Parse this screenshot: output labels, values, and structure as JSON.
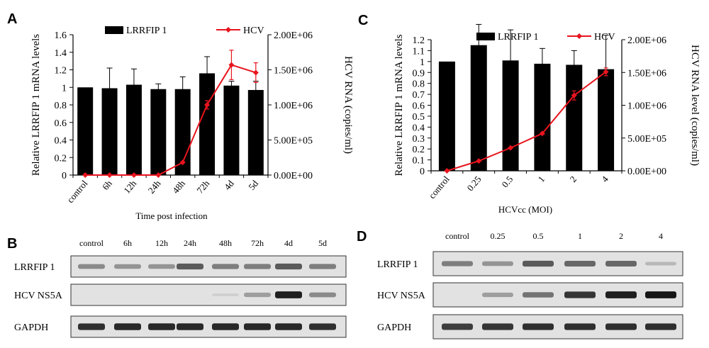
{
  "chart_data": [
    {
      "panel": "A",
      "type": "bar",
      "secondary_type": "line",
      "categories": [
        "control",
        "6h",
        "12h",
        "24h",
        "48h",
        "72h",
        "4d",
        "5d"
      ],
      "xlabel": "Time post infection",
      "ylabel": "Relative LRRFIP 1 mRNA levels",
      "y2label": "HCV RNA (copies/ml)",
      "ylim": [
        0,
        1.6
      ],
      "yticks": [
        "0",
        "0.2",
        "0.4",
        "0.6",
        "0.8",
        "1",
        "1.2",
        "1.4",
        "1.6"
      ],
      "y2lim": [
        0,
        2000000
      ],
      "y2ticks": [
        "0.00E+00",
        "5.00E+05",
        "1.00E+06",
        "1.50E+06",
        "2.00E+06"
      ],
      "legend": [
        "LRRFIP 1",
        "HCV"
      ],
      "legend_position": "top",
      "series": [
        {
          "name": "LRRFIP 1",
          "axis": "left",
          "color": "#000000",
          "values": [
            1.0,
            0.99,
            1.03,
            0.98,
            0.98,
            1.16,
            1.02,
            0.97
          ],
          "error": [
            0,
            0.23,
            0.18,
            0.06,
            0.14,
            0.19,
            0.05,
            0.1
          ]
        },
        {
          "name": "HCV",
          "axis": "right",
          "color": "#e8141d",
          "values": [
            0,
            0,
            0,
            0,
            180000,
            1000000,
            1570000,
            1460000
          ],
          "error": [
            0,
            0,
            0,
            0,
            0,
            60000,
            210000,
            140000
          ]
        }
      ]
    },
    {
      "panel": "C",
      "type": "bar",
      "secondary_type": "line",
      "categories": [
        "control",
        "0.25",
        "0.5",
        "1",
        "2",
        "4"
      ],
      "xlabel": "HCVcc (MOI)",
      "ylabel": "Relative LRRFIP 1 mRNA levels",
      "y2label": "HCV RNA level (copies/ml)",
      "ylim": [
        0,
        1.2
      ],
      "yticks": [
        "0",
        "0.1",
        "0.2",
        "0.3",
        "0.4",
        "0.5",
        "0.6",
        "0.7",
        "0.8",
        "0.9",
        "1",
        "1.1",
        "1.2"
      ],
      "y2lim": [
        0,
        2000000
      ],
      "y2ticks": [
        "0.00E+00",
        "5.00E+05",
        "1.00E+06",
        "1.50E+06",
        "2.00E+06"
      ],
      "legend": [
        "LRRFIP 1",
        "HCV"
      ],
      "legend_position": "top",
      "series": [
        {
          "name": "LRRFIP 1",
          "axis": "left",
          "color": "#000000",
          "values": [
            1.0,
            1.15,
            1.01,
            0.98,
            0.97,
            0.93
          ],
          "error": [
            0,
            0.19,
            0.28,
            0.14,
            0.13,
            0.31
          ]
        },
        {
          "name": "HCV",
          "axis": "right",
          "color": "#e8141d",
          "values": [
            0,
            150000,
            350000,
            570000,
            1150000,
            1510000
          ],
          "error": [
            0,
            0,
            0,
            0,
            70000,
            60000
          ]
        }
      ]
    }
  ],
  "blots": [
    {
      "panel": "B",
      "columns": [
        "control",
        "6h",
        "12h",
        "24h",
        "48h",
        "72h",
        "4d",
        "5d"
      ],
      "rows": [
        {
          "label": "LRRFIP 1",
          "intensity": [
            0.55,
            0.5,
            0.5,
            0.75,
            0.6,
            0.6,
            0.75,
            0.6
          ]
        },
        {
          "label": "HCV NS5A",
          "intensity": [
            0,
            0,
            0,
            0,
            0.12,
            0.45,
            0.95,
            0.55
          ]
        },
        {
          "label": "GAPDH",
          "intensity": [
            0.9,
            0.92,
            0.92,
            0.92,
            0.92,
            0.92,
            0.92,
            0.9
          ]
        }
      ]
    },
    {
      "panel": "D",
      "columns": [
        "control",
        "0.25",
        "0.5",
        "1",
        "2",
        "4"
      ],
      "rows": [
        {
          "label": "LRRFIP 1",
          "intensity": [
            0.6,
            0.5,
            0.75,
            0.7,
            0.7,
            0.3
          ]
        },
        {
          "label": "HCV NS5A",
          "intensity": [
            0,
            0.45,
            0.65,
            0.88,
            0.95,
            0.98
          ]
        },
        {
          "label": "GAPDH",
          "intensity": [
            0.85,
            0.88,
            0.9,
            0.9,
            0.9,
            0.9
          ]
        }
      ]
    }
  ]
}
